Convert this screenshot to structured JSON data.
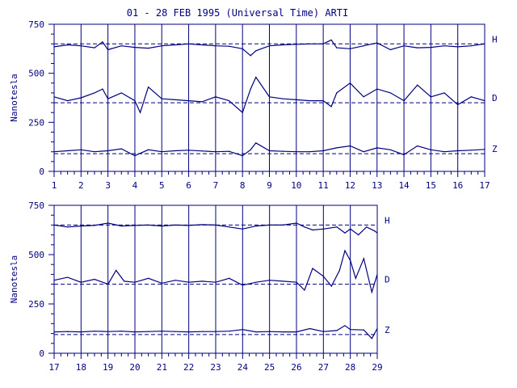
{
  "chart_data": {
    "type": "line",
    "title": "01 - 28 FEB 1995 (Universal Time) ARTI",
    "ylabel": "Nanotesla",
    "colors": {
      "trace": "#000080",
      "background": "#ffffff"
    },
    "grid": "vertical day lines",
    "panels": [
      {
        "xlim": [
          1,
          17
        ],
        "ylim": [
          0,
          750
        ],
        "xticks": [
          "1",
          "2",
          "3",
          "4",
          "5",
          "6",
          "7",
          "8",
          "9",
          "10",
          "11",
          "12",
          "13",
          "14",
          "15",
          "16",
          "17"
        ],
        "yticks": [
          "0",
          "250",
          "500",
          "750"
        ],
        "series": [
          {
            "name": "H",
            "baseline": 650,
            "x": [
              1,
              1.5,
              2,
              2.5,
              2.8,
              3,
              3.5,
              4,
              4.5,
              5,
              5.5,
              6,
              6.5,
              7,
              7.5,
              8,
              8.3,
              8.5,
              9,
              9.5,
              10,
              10.5,
              11,
              11.3,
              11.5,
              12,
              12.5,
              13,
              13.5,
              14,
              14.5,
              15,
              15.5,
              16,
              16.5,
              17
            ],
            "values": [
              635,
              645,
              640,
              630,
              660,
              620,
              640,
              632,
              628,
              640,
              645,
              650,
              645,
              640,
              638,
              625,
              590,
              615,
              640,
              645,
              648,
              650,
              650,
              670,
              630,
              625,
              640,
              655,
              620,
              640,
              630,
              632,
              640,
              635,
              640,
              650
            ]
          },
          {
            "name": "D",
            "baseline": 350,
            "x": [
              1,
              1.5,
              2,
              2.5,
              2.8,
              3,
              3.5,
              4,
              4.2,
              4.5,
              5,
              5.5,
              6,
              6.5,
              7,
              7.5,
              8,
              8.3,
              8.5,
              9,
              9.5,
              10,
              10.5,
              11,
              11.3,
              11.5,
              12,
              12.5,
              13,
              13.5,
              14,
              14.5,
              15,
              15.5,
              16,
              16.5,
              17
            ],
            "values": [
              380,
              360,
              375,
              400,
              420,
              370,
              400,
              360,
              300,
              430,
              370,
              365,
              360,
              355,
              380,
              360,
              300,
              420,
              480,
              380,
              370,
              365,
              360,
              360,
              330,
              400,
              450,
              380,
              420,
              400,
              360,
              440,
              380,
              400,
              340,
              380,
              360
            ]
          },
          {
            "name": "Z",
            "baseline": 90,
            "x": [
              1,
              1.5,
              2,
              2.5,
              3,
              3.5,
              4,
              4.5,
              5,
              5.5,
              6,
              6.5,
              7,
              7.5,
              8,
              8.3,
              8.5,
              9,
              9.5,
              10,
              10.5,
              11,
              11.5,
              12,
              12.5,
              13,
              13.5,
              14,
              14.5,
              15,
              15.5,
              16,
              16.5,
              17
            ],
            "values": [
              100,
              105,
              110,
              100,
              105,
              115,
              80,
              110,
              100,
              105,
              108,
              104,
              100,
              102,
              80,
              110,
              145,
              105,
              102,
              100,
              100,
              105,
              120,
              130,
              100,
              120,
              110,
              85,
              130,
              110,
              100,
              105,
              108,
              112
            ]
          }
        ]
      },
      {
        "xlim": [
          17,
          29
        ],
        "ylim": [
          0,
          750
        ],
        "xticks": [
          "17",
          "18",
          "19",
          "20",
          "21",
          "22",
          "23",
          "24",
          "25",
          "26",
          "27",
          "28",
          "29"
        ],
        "yticks": [
          "0",
          "250",
          "500",
          "750"
        ],
        "series": [
          {
            "name": "H",
            "baseline": 650,
            "x": [
              17,
              17.5,
              18,
              18.5,
              19,
              19.5,
              20,
              20.5,
              21,
              21.5,
              22,
              22.5,
              23,
              23.5,
              24,
              24.5,
              25,
              25.5,
              26,
              26.3,
              26.6,
              27,
              27.5,
              27.8,
              28,
              28.3,
              28.6,
              28.9,
              29
            ],
            "values": [
              650,
              640,
              645,
              648,
              660,
              645,
              648,
              650,
              645,
              650,
              648,
              652,
              650,
              640,
              630,
              645,
              650,
              650,
              660,
              640,
              625,
              630,
              640,
              610,
              630,
              600,
              640,
              620,
              610
            ]
          },
          {
            "name": "D",
            "baseline": 350,
            "x": [
              17,
              17.5,
              18,
              18.5,
              19,
              19.3,
              19.6,
              20,
              20.5,
              21,
              21.5,
              22,
              22.5,
              23,
              23.5,
              24,
              24.5,
              25,
              25.5,
              26,
              26.3,
              26.6,
              27,
              27.3,
              27.6,
              27.8,
              28,
              28.2,
              28.5,
              28.8,
              29
            ],
            "values": [
              370,
              385,
              360,
              375,
              350,
              420,
              365,
              360,
              380,
              355,
              370,
              360,
              365,
              360,
              380,
              345,
              360,
              370,
              365,
              360,
              320,
              430,
              390,
              340,
              420,
              520,
              470,
              380,
              480,
              310,
              400
            ]
          },
          {
            "name": "Z",
            "baseline": 95,
            "x": [
              17,
              17.5,
              18,
              18.5,
              19,
              19.5,
              20,
              20.5,
              21,
              21.5,
              22,
              22.5,
              23,
              23.5,
              24,
              24.5,
              25,
              25.5,
              26,
              26.5,
              27,
              27.5,
              27.8,
              28,
              28.5,
              28.8,
              29
            ],
            "values": [
              108,
              110,
              108,
              112,
              110,
              112,
              108,
              110,
              112,
              110,
              108,
              110,
              110,
              112,
              120,
              108,
              110,
              108,
              108,
              125,
              110,
              115,
              140,
              120,
              118,
              75,
              125
            ]
          }
        ]
      }
    ]
  }
}
